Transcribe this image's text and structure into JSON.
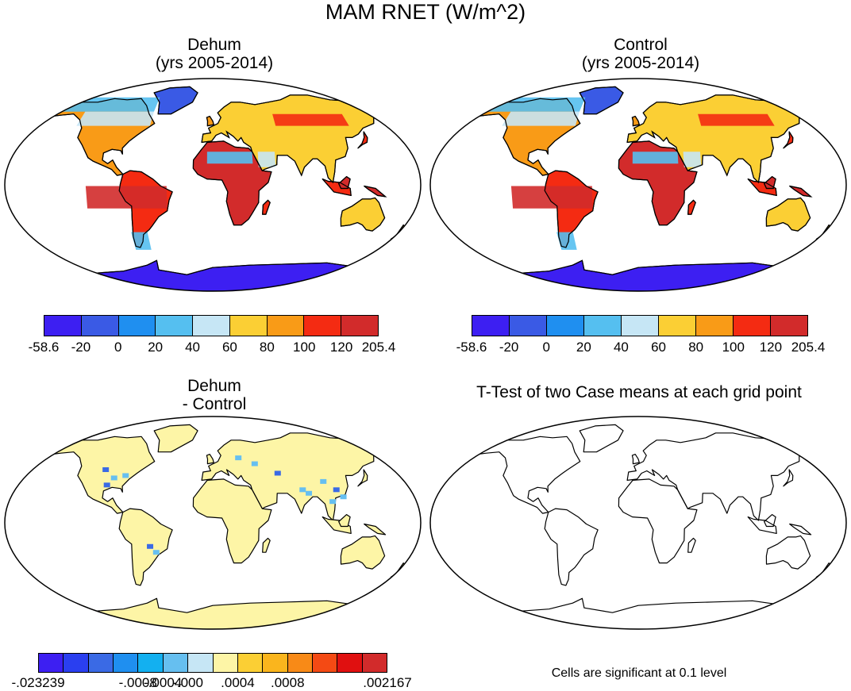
{
  "figure": {
    "title": "MAM RNET (W/m^2)"
  },
  "panels": {
    "top_left": {
      "title_line1": "Dehum",
      "title_line2": "(yrs 2005-2014)",
      "color_scheme": "absolute"
    },
    "top_right": {
      "title_line1": "Control",
      "title_line2": "(yrs 2005-2014)",
      "color_scheme": "absolute"
    },
    "bottom_left": {
      "title_line1": "Dehum",
      "title_line2": "- Control",
      "color_scheme": "difference"
    },
    "bottom_right": {
      "title_line1": "T-Test of two Case means at each grid point",
      "note": "Cells are significant at 0.1 level",
      "color_scheme": "outline"
    }
  },
  "colorbar_absolute": {
    "colors": [
      "#3d1ff2",
      "#3a5ae5",
      "#1f8ff0",
      "#55bff0",
      "#c6e6f5",
      "#fbcf34",
      "#f99b17",
      "#f42b12",
      "#d22b2b"
    ],
    "labels": [
      "-58.6",
      "-20",
      "0",
      "20",
      "40",
      "60",
      "80",
      "100",
      "120",
      "205.4"
    ]
  },
  "colorbar_difference": {
    "colors": [
      "#3d1ff2",
      "#2a3ff0",
      "#3a6ae5",
      "#1f8ff0",
      "#13b0f0",
      "#66bff0",
      "#c6e6f5",
      "#fdf5a6",
      "#fbcf34",
      "#fab51d",
      "#f88a17",
      "#f44a14",
      "#e01010",
      "#d22b2b"
    ],
    "labels": [
      "-.023239",
      "",
      "-.0008",
      "-.0004",
      "-.000",
      ".0004",
      ".0008",
      ".002167"
    ]
  }
}
